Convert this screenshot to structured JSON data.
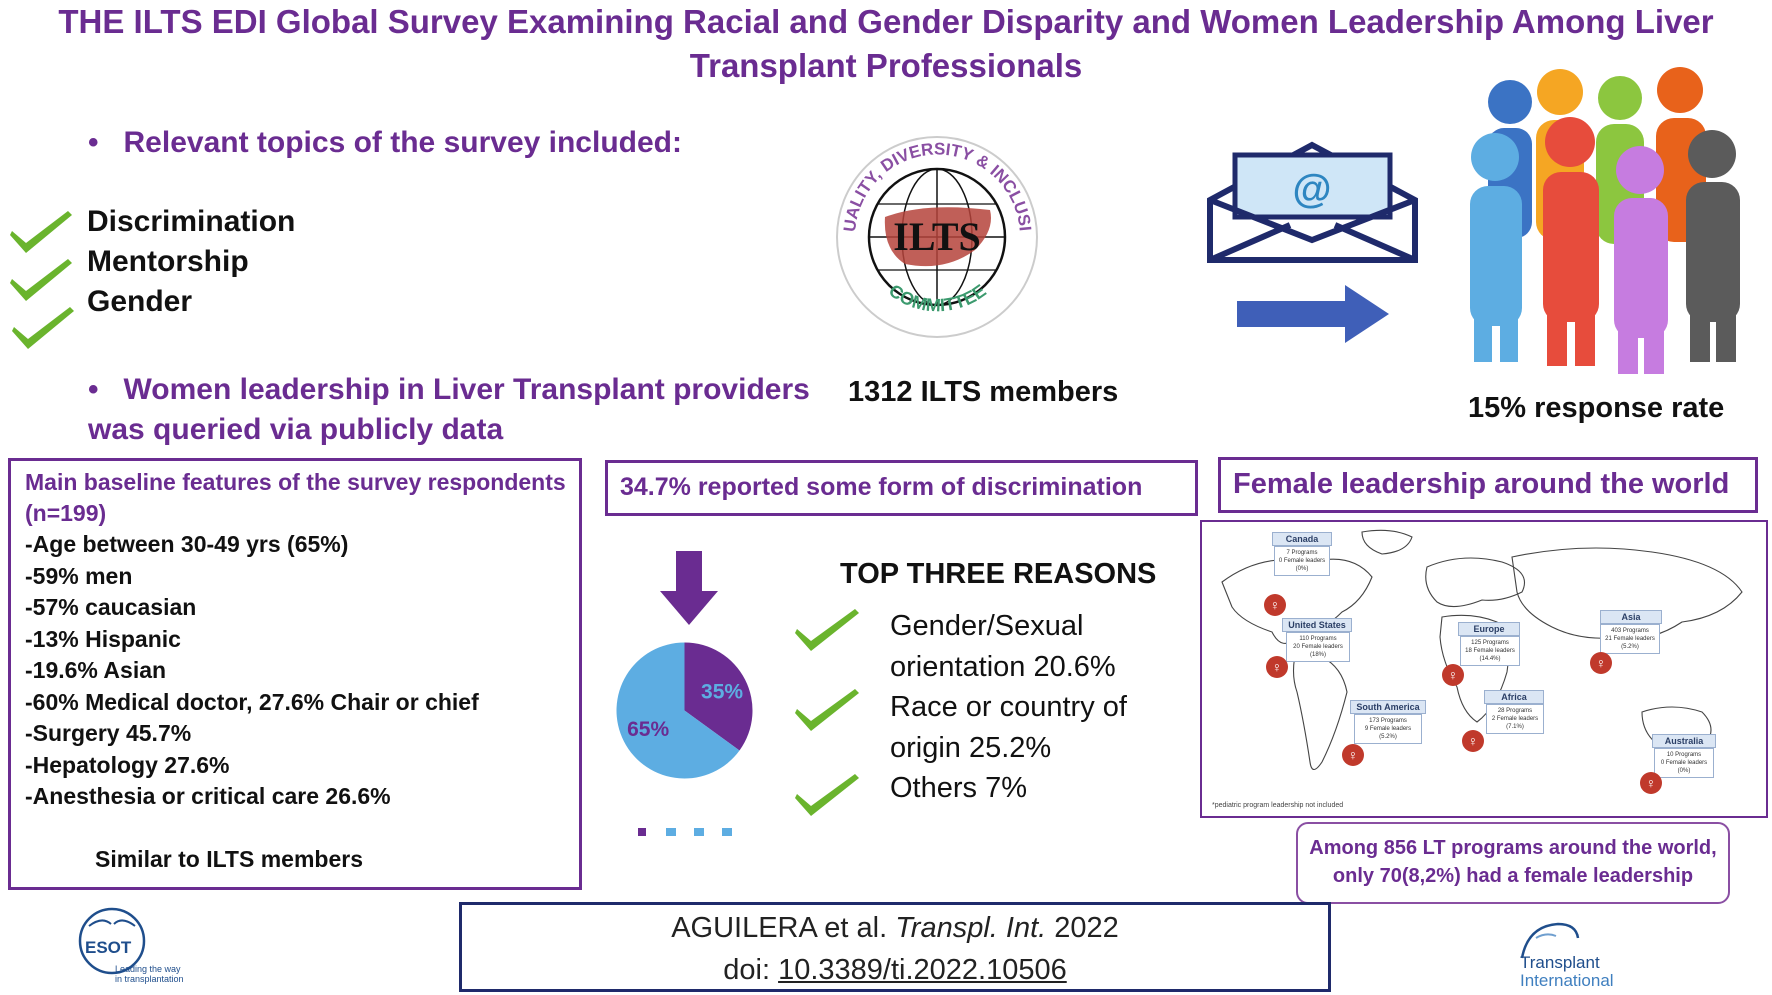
{
  "title_line1": "THE ILTS EDI Global Survey Examining Racial and Gender Disparity and Women Leadership Among Liver",
  "title_line2": "Transplant Professionals",
  "topics_heading": "Relevant topics of the survey included:",
  "topics": [
    "Discrimination",
    "Mentorship",
    "Gender"
  ],
  "women_heading_line1": "Women leadership in Liver Transplant providers",
  "women_heading_line2": "was queried via publicly data",
  "ilts_logo": {
    "arc_top": "EQUALITY, DIVERSITY & INCLUSION",
    "center": "ILTS",
    "arc_bottom": "COMMITTEE"
  },
  "members_label": "1312 ILTS members",
  "envelope_symbol": "@",
  "response_label": "15% response rate",
  "baseline": {
    "title_line1": "Main baseline features of the survey respondents",
    "title_line2": "(n=199)",
    "items": [
      "-Age between 30-49 yrs (65%)",
      "-59% men",
      "-57% caucasian",
      "-13% Hispanic",
      "-19.6% Asian",
      "-60% Medical doctor, 27.6% Chair or chief",
      "-Surgery 45.7%",
      "-Hepatology 27.6%",
      "-Anesthesia or critical care 26.6%"
    ],
    "footer": "Similar to ILTS members"
  },
  "discrimination_label": "34.7% reported  some  form  of  discrimination",
  "top_reasons_heading": "TOP THREE REASONS",
  "reasons": [
    {
      "line1": "Gender/Sexual",
      "line2": "orientation 20.6%"
    },
    {
      "line1": "Race or country of",
      "line2": "origin 25.2%"
    },
    {
      "line1": "Others 7%",
      "line2": ""
    }
  ],
  "chart_data": {
    "type": "pie",
    "categories": [
      "",
      ""
    ],
    "values": [
      35,
      65
    ],
    "labels": [
      "35%",
      "65%"
    ],
    "colors": [
      "#6a2c91",
      "#5dade2"
    ]
  },
  "world_heading": "Female leadership around the world",
  "map": {
    "regions": [
      {
        "name": "Canada",
        "l1": "7 Programs",
        "l2": "0 Female leaders",
        "l3": "(0%)"
      },
      {
        "name": "United States",
        "l1": "110 Programs",
        "l2": "20 Female leaders",
        "l3": "(18%)"
      },
      {
        "name": "Europe",
        "l1": "125 Programs",
        "l2": "18 Female leaders",
        "l3": "(14.4%)"
      },
      {
        "name": "Asia",
        "l1": "403 Programs",
        "l2": "21 Female leaders",
        "l3": "(5.2%)"
      },
      {
        "name": "South America",
        "l1": "173 Programs",
        "l2": "9 Female leaders",
        "l3": "(5.2%)"
      },
      {
        "name": "Africa",
        "l1": "28 Programs",
        "l2": "2 Female leaders",
        "l3": "(7.1%)"
      },
      {
        "name": "Australia",
        "l1": "10 Programs",
        "l2": "0 Female leaders",
        "l3": "(0%)"
      }
    ],
    "footnote": "*pediatric program leadership not included"
  },
  "leadership_summary_line1": "Among 856 LT programs around the world,",
  "leadership_summary_line2": "only 70(8,2%) had a female leadership",
  "citation": {
    "authors": "AGUILERA et al.",
    "journal": "Transpl. Int.",
    "year": "2022",
    "doi_prefix": "doi:",
    "doi": "10.3389/ti.2022.10506"
  },
  "esot_logo": {
    "name": "ESOT",
    "tagline1": "Leading the way",
    "tagline2": "in transplantation"
  },
  "ti_logo": {
    "line1": "Transplant",
    "line2": "International"
  },
  "colors": {
    "purple": "#6a2c91",
    "navy": "#1f2a6b",
    "light_blue": "#5dade2",
    "green_check": "#6ab42d"
  }
}
